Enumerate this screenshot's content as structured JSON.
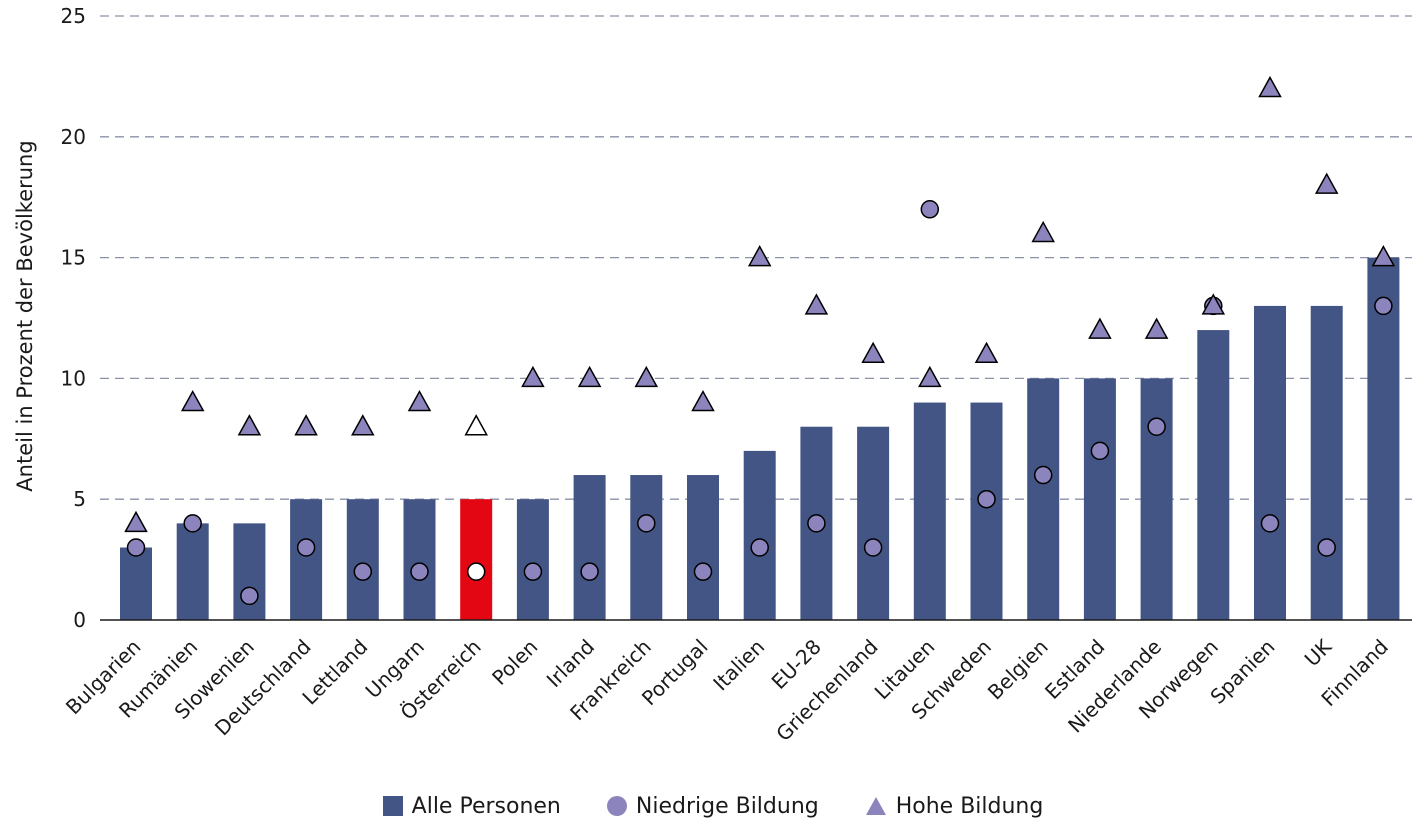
{
  "chart_data": {
    "type": "bar",
    "ylabel": "Anteil in Prozent der Bevölkerung",
    "ylim": [
      0,
      25
    ],
    "yticks": [
      0,
      5,
      10,
      15,
      20,
      25
    ],
    "grid": true,
    "legend_placement": "bottom-center",
    "categories": [
      "Bulgarien",
      "Rumänien",
      "Slowenien",
      "Deutschland",
      "Lettland",
      "Ungarn",
      "Österreich",
      "Polen",
      "Irland",
      "Frankreich",
      "Portugal",
      "Italien",
      "EU-28",
      "Griechenland",
      "Litauen",
      "Schweden",
      "Belgien",
      "Estland",
      "Niederlande",
      "Norwegen",
      "Spanien",
      "UK",
      "Finnland"
    ],
    "highlight_category": "Österreich",
    "series": [
      {
        "name": "Alle Personen",
        "marker": "bar",
        "values": [
          3,
          4,
          4,
          5,
          5,
          5,
          5,
          5,
          6,
          6,
          6,
          7,
          8,
          8,
          9,
          9,
          10,
          10,
          10,
          12,
          13,
          13,
          15
        ]
      },
      {
        "name": "Niedrige Bildung",
        "marker": "circle",
        "values": [
          3,
          4,
          1,
          3,
          2,
          2,
          2,
          2,
          2,
          4,
          2,
          3,
          4,
          3,
          17,
          5,
          6,
          7,
          8,
          13,
          4,
          3,
          13
        ]
      },
      {
        "name": "Hohe Bildung",
        "marker": "triangle",
        "values": [
          4,
          9,
          8,
          8,
          8,
          9,
          8,
          10,
          10,
          10,
          9,
          15,
          13,
          11,
          10,
          11,
          16,
          12,
          12,
          13,
          22,
          18,
          15
        ]
      }
    ]
  },
  "colors": {
    "bar": "#435585",
    "highlight_bar": "#e30613",
    "marker_fill": "#8c85bd",
    "highlight_marker_fill": "#ffffff",
    "grid": "#8a92a8",
    "text": "#1a1a1a"
  }
}
